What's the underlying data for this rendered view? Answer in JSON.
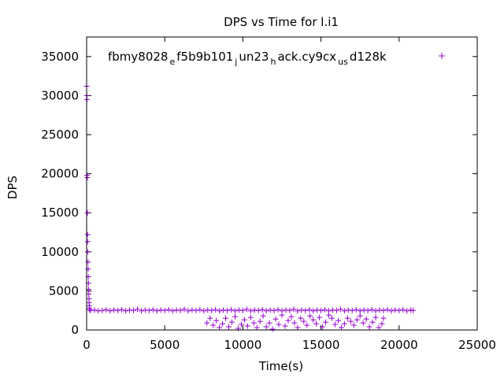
{
  "chart_data": {
    "type": "scatter",
    "title": "DPS vs Time for l.i1",
    "xlabel": "Time(s)",
    "ylabel": "DPS",
    "xlim": [
      0,
      25000
    ],
    "ylim": [
      0,
      37500
    ],
    "xticks": [
      0,
      5000,
      10000,
      15000,
      20000,
      25000
    ],
    "yticks": [
      0,
      5000,
      10000,
      15000,
      20000,
      25000,
      30000,
      35000
    ],
    "grid": false,
    "legend_position": "top-right",
    "marker": "+",
    "series": [
      {
        "name": "fbmy8028_ef5b9b101_jun23_hack.cy9cx_usd128k",
        "legend_parts": [
          {
            "text": "fbmy8028",
            "sub": false
          },
          {
            "text": "e",
            "sub": true
          },
          {
            "text": "f5b9b101",
            "sub": false
          },
          {
            "text": "j",
            "sub": true
          },
          {
            "text": "un23",
            "sub": false
          },
          {
            "text": "h",
            "sub": true
          },
          {
            "text": "ack.cy9cx",
            "sub": false
          },
          {
            "text": "us",
            "sub": true
          },
          {
            "text": "d128k",
            "sub": false
          }
        ],
        "color": "#9400d3",
        "points": [
          [
            0,
            31200
          ],
          [
            10,
            30000
          ],
          [
            20,
            29500
          ],
          [
            30,
            19800
          ],
          [
            40,
            19500
          ],
          [
            50,
            15000
          ],
          [
            60,
            12200
          ],
          [
            70,
            11300
          ],
          [
            80,
            10000
          ],
          [
            90,
            8700
          ],
          [
            100,
            7800
          ],
          [
            110,
            6800
          ],
          [
            120,
            6000
          ],
          [
            130,
            5200
          ],
          [
            140,
            4600
          ],
          [
            150,
            4000
          ],
          [
            160,
            3500
          ],
          [
            170,
            3100
          ],
          [
            180,
            2800
          ],
          [
            190,
            2600
          ],
          [
            250,
            2500
          ],
          [
            500,
            2550
          ],
          [
            750,
            2450
          ],
          [
            1000,
            2500
          ],
          [
            1250,
            2600
          ],
          [
            1500,
            2450
          ],
          [
            1750,
            2550
          ],
          [
            2000,
            2500
          ],
          [
            2250,
            2600
          ],
          [
            2500,
            2450
          ],
          [
            2750,
            2550
          ],
          [
            3000,
            2500
          ],
          [
            3250,
            2650
          ],
          [
            3500,
            2450
          ],
          [
            3750,
            2550
          ],
          [
            4000,
            2500
          ],
          [
            4250,
            2600
          ],
          [
            4500,
            2450
          ],
          [
            4750,
            2550
          ],
          [
            5000,
            2500
          ],
          [
            5250,
            2600
          ],
          [
            5500,
            2450
          ],
          [
            5750,
            2550
          ],
          [
            6000,
            2500
          ],
          [
            6250,
            2650
          ],
          [
            6500,
            2450
          ],
          [
            6750,
            2550
          ],
          [
            7000,
            2500
          ],
          [
            7250,
            2600
          ],
          [
            7500,
            2450
          ],
          [
            7750,
            2550
          ],
          [
            8000,
            2500
          ],
          [
            8250,
            2600
          ],
          [
            8500,
            2450
          ],
          [
            8750,
            2550
          ],
          [
            9000,
            2500
          ],
          [
            9250,
            2600
          ],
          [
            9500,
            2450
          ],
          [
            9750,
            2550
          ],
          [
            10000,
            2500
          ],
          [
            10250,
            2650
          ],
          [
            10500,
            2450
          ],
          [
            10750,
            2550
          ],
          [
            11000,
            2500
          ],
          [
            11250,
            2600
          ],
          [
            11500,
            2450
          ],
          [
            11750,
            2550
          ],
          [
            12000,
            2500
          ],
          [
            12250,
            2600
          ],
          [
            12500,
            2450
          ],
          [
            12750,
            2550
          ],
          [
            13000,
            2500
          ],
          [
            13250,
            2650
          ],
          [
            13500,
            2450
          ],
          [
            13750,
            2550
          ],
          [
            14000,
            2500
          ],
          [
            14250,
            2600
          ],
          [
            14500,
            2450
          ],
          [
            14750,
            2550
          ],
          [
            15000,
            2500
          ],
          [
            15250,
            2600
          ],
          [
            15500,
            2450
          ],
          [
            15750,
            2550
          ],
          [
            16000,
            2500
          ],
          [
            16250,
            2650
          ],
          [
            16500,
            2450
          ],
          [
            16750,
            2550
          ],
          [
            17000,
            2500
          ],
          [
            17250,
            2600
          ],
          [
            17500,
            2450
          ],
          [
            17750,
            2550
          ],
          [
            18000,
            2500
          ],
          [
            18250,
            2600
          ],
          [
            18500,
            2450
          ],
          [
            18750,
            2550
          ],
          [
            19000,
            2500
          ],
          [
            19250,
            2600
          ],
          [
            19500,
            2450
          ],
          [
            19750,
            2550
          ],
          [
            20000,
            2500
          ],
          [
            20250,
            2600
          ],
          [
            20500,
            2450
          ],
          [
            20750,
            2550
          ],
          [
            20900,
            2500
          ],
          [
            7700,
            900
          ],
          [
            7900,
            1500
          ],
          [
            8100,
            600
          ],
          [
            8300,
            1200
          ],
          [
            8500,
            300
          ],
          [
            8700,
            800
          ],
          [
            8900,
            1500
          ],
          [
            9100,
            400
          ],
          [
            9300,
            1000
          ],
          [
            9500,
            1700
          ],
          [
            9700,
            200
          ],
          [
            9900,
            700
          ],
          [
            10100,
            1300
          ],
          [
            10300,
            500
          ],
          [
            10500,
            1600
          ],
          [
            10700,
            900
          ],
          [
            10900,
            300
          ],
          [
            11100,
            1100
          ],
          [
            11300,
            1800
          ],
          [
            11500,
            400
          ],
          [
            11700,
            900
          ],
          [
            11900,
            100
          ],
          [
            12100,
            1400
          ],
          [
            12300,
            700
          ],
          [
            12500,
            1900
          ],
          [
            12700,
            500
          ],
          [
            12900,
            1200
          ],
          [
            13100,
            1700
          ],
          [
            13300,
            900
          ],
          [
            13500,
            300
          ],
          [
            13700,
            1500
          ],
          [
            13900,
            1100
          ],
          [
            14100,
            600
          ],
          [
            14300,
            1800
          ],
          [
            14500,
            1300
          ],
          [
            14700,
            800
          ],
          [
            14900,
            1600
          ],
          [
            15100,
            400
          ],
          [
            15300,
            1000
          ],
          [
            15500,
            1900
          ],
          [
            15700,
            1500
          ],
          [
            15900,
            700
          ],
          [
            16100,
            1200
          ],
          [
            16300,
            300
          ],
          [
            16500,
            800
          ],
          [
            16700,
            1500
          ],
          [
            16900,
            1100
          ],
          [
            17100,
            600
          ],
          [
            17300,
            1300
          ],
          [
            17500,
            1800
          ],
          [
            17700,
            900
          ],
          [
            17900,
            1400
          ],
          [
            18100,
            400
          ],
          [
            18300,
            1000
          ],
          [
            18500,
            1600
          ],
          [
            18700,
            300
          ],
          [
            18900,
            800
          ],
          [
            19000,
            1500
          ]
        ]
      }
    ]
  }
}
